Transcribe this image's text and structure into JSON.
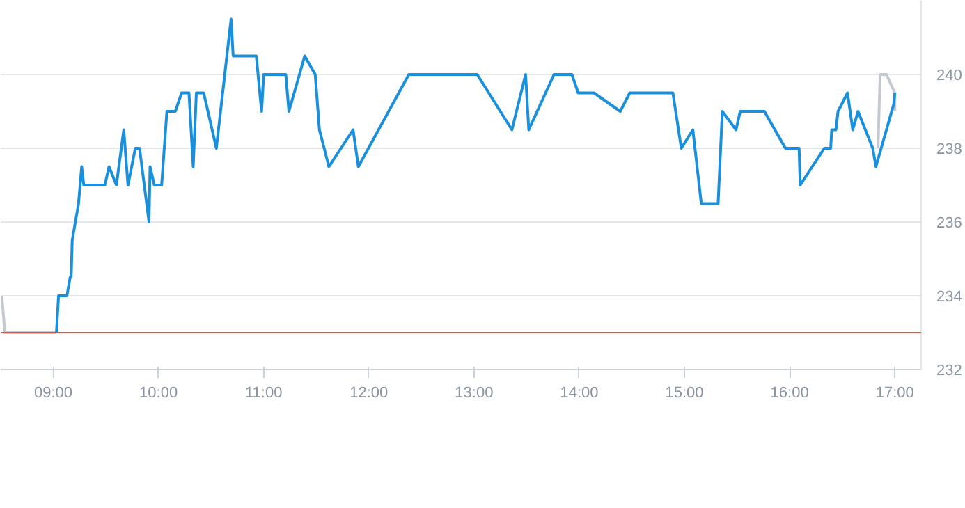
{
  "chart_data": {
    "type": "line",
    "x": [
      9.03,
      9.05,
      9.13,
      9.16,
      9.17,
      9.18,
      9.24,
      9.27,
      9.29,
      9.49,
      9.53,
      9.6,
      9.67,
      9.71,
      9.78,
      9.82,
      9.91,
      9.92,
      9.96,
      10.03,
      10.08,
      10.16,
      10.22,
      10.29,
      10.33,
      10.36,
      10.43,
      10.55,
      10.61,
      10.69,
      10.71,
      10.93,
      10.98,
      11.0,
      11.21,
      11.24,
      11.39,
      11.49,
      11.53,
      11.62,
      11.85,
      11.9,
      12.38,
      13.03,
      13.36,
      13.49,
      13.52,
      13.76,
      13.93,
      13.99,
      14.14,
      14.39,
      14.48,
      14.89,
      14.97,
      15.08,
      15.16,
      15.32,
      15.36,
      15.49,
      15.53,
      15.76,
      15.96,
      16.09,
      16.1,
      16.33,
      16.39,
      16.4,
      16.44,
      16.46,
      16.55,
      16.6,
      16.65,
      16.79,
      16.82,
      16.99,
      17.0
    ],
    "series": [
      {
        "color": "#1a8fdb",
        "values": [
          233,
          234,
          234,
          234.5,
          234.5,
          235.5,
          236.5,
          237.5,
          237,
          237,
          237.5,
          237,
          238.5,
          237,
          238,
          238,
          236,
          237.5,
          237,
          237,
          239,
          239,
          239.5,
          239.5,
          237.5,
          239.5,
          239.5,
          238,
          239.5,
          241.5,
          240.5,
          240.5,
          239,
          240,
          240,
          239,
          240.5,
          240,
          238.5,
          237.5,
          238.5,
          237.5,
          240,
          240,
          238.5,
          240,
          238.5,
          240,
          240,
          239.5,
          239.5,
          239,
          239.5,
          239.5,
          238,
          238.5,
          236.5,
          236.5,
          239,
          238.5,
          239,
          239,
          238,
          238,
          237,
          238,
          238,
          238.5,
          238.5,
          239,
          239.5,
          238.5,
          239,
          238,
          237.5,
          239.2,
          239.5
        ]
      },
      {
        "color": "#c4c9d0",
        "x": [
          8.51,
          8.54,
          9.03,
          16.83,
          16.84,
          16.86,
          16.92,
          17.0,
          17.0
        ],
        "values": [
          234,
          233,
          233,
          null,
          238,
          240,
          240,
          239.5,
          239
        ]
      }
    ],
    "xlim": [
      8.5,
      17.25
    ],
    "xticks": [
      {
        "value": 9,
        "label": "09:00"
      },
      {
        "value": 10,
        "label": "10:00"
      },
      {
        "value": 11,
        "label": "11:00"
      },
      {
        "value": 12,
        "label": "12:00"
      },
      {
        "value": 13,
        "label": "13:00"
      },
      {
        "value": 14,
        "label": "14:00"
      },
      {
        "value": 15,
        "label": "15:00"
      },
      {
        "value": 16,
        "label": "16:00"
      },
      {
        "value": 17,
        "label": "17:00"
      }
    ],
    "ylim": [
      232,
      242
    ],
    "yticks": [
      232,
      234,
      236,
      238,
      240
    ],
    "ref_lines": [
      {
        "axis": "y",
        "value": 233,
        "color": "#d9534f"
      }
    ],
    "grid": "y"
  }
}
